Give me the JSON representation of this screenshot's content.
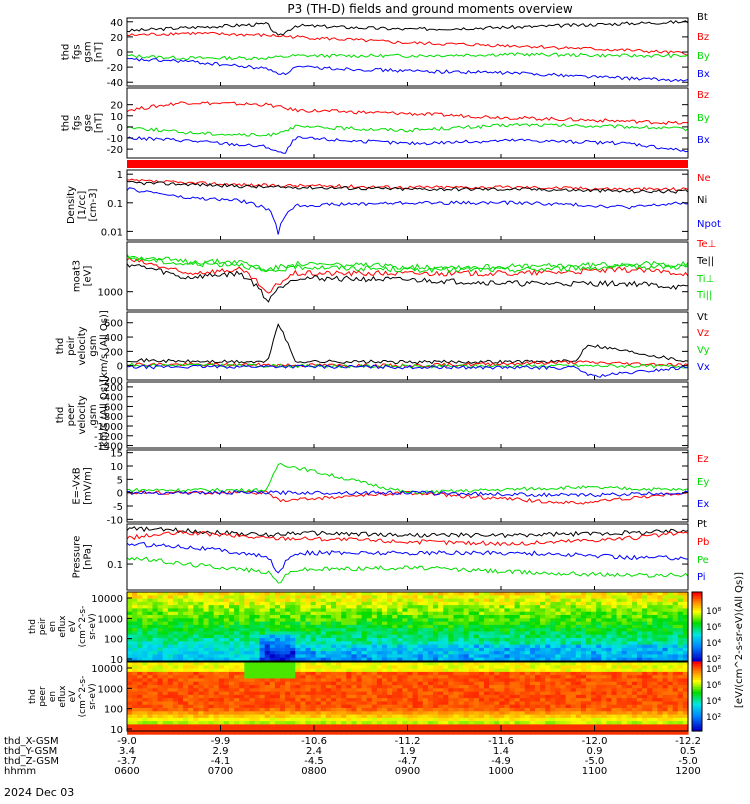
{
  "title": "P3 (TH-D) fields and ground moments overview",
  "colors": {
    "black": "#000000",
    "red": "#ff0000",
    "green": "#00dd00",
    "blue": "#0000ff"
  },
  "chart_data": {
    "type": "line",
    "date": "2024 Dec 03",
    "time_range_hhmm": [
      "0600",
      "1200"
    ],
    "panels": [
      {
        "id": "fgs-gsm",
        "ylabel_lines": [
          "thd",
          "fgs",
          "gsm",
          "[nT]"
        ],
        "ylim": [
          -45,
          45
        ],
        "ticks": [
          40,
          20,
          0,
          -20,
          -40
        ],
        "series": [
          {
            "name": "Bt",
            "color": "#000000",
            "x": [
              0,
              0.1,
              0.25,
              0.27,
              0.3,
              0.5,
              0.7,
              0.9,
              1.0
            ],
            "y": [
              28,
              32,
              37,
              20,
              35,
              30,
              33,
              38,
              40
            ]
          },
          {
            "name": "Bz",
            "color": "#ff0000",
            "x": [
              0,
              0.1,
              0.25,
              0.3,
              0.5,
              0.7,
              0.9,
              1.0
            ],
            "y": [
              22,
              25,
              22,
              20,
              12,
              8,
              2,
              -2
            ]
          },
          {
            "name": "By",
            "color": "#00dd00",
            "x": [
              0,
              0.1,
              0.25,
              0.3,
              0.5,
              0.7,
              0.9,
              1.0
            ],
            "y": [
              -5,
              -8,
              -8,
              -5,
              -5,
              -3,
              -5,
              -5
            ]
          },
          {
            "name": "Bx",
            "color": "#0000ff",
            "x": [
              0,
              0.1,
              0.25,
              0.28,
              0.3,
              0.5,
              0.7,
              0.9,
              1.0
            ],
            "y": [
              -10,
              -12,
              -22,
              -30,
              -20,
              -25,
              -28,
              -35,
              -38
            ]
          }
        ]
      },
      {
        "id": "fgs-gse",
        "ylabel_lines": [
          "thd",
          "fgs",
          "gse",
          "[nT]"
        ],
        "ylim": [
          -28,
          35
        ],
        "ticks": [
          20,
          10,
          0,
          -10,
          -20
        ],
        "series": [
          {
            "name": "Bz",
            "color": "#ff0000",
            "x": [
              0,
              0.1,
              0.25,
              0.3,
              0.5,
              0.7,
              0.9,
              1.0
            ],
            "y": [
              15,
              22,
              20,
              15,
              12,
              8,
              5,
              3
            ]
          },
          {
            "name": "By",
            "color": "#00dd00",
            "x": [
              0,
              0.1,
              0.25,
              0.3,
              0.5,
              0.7,
              0.9,
              1.0
            ],
            "y": [
              0,
              -5,
              -8,
              0,
              -3,
              2,
              0,
              -2
            ]
          },
          {
            "name": "Bx",
            "color": "#0000ff",
            "x": [
              0,
              0.1,
              0.25,
              0.28,
              0.3,
              0.5,
              0.7,
              0.9,
              1.0
            ],
            "y": [
              -10,
              -12,
              -18,
              -25,
              -10,
              -15,
              -12,
              -15,
              -22
            ]
          }
        ]
      },
      {
        "id": "density",
        "ylabel_lines": [
          "Density",
          "[1/cc]",
          "[cm-3]"
        ],
        "ylim": [
          0.005,
          1.4
        ],
        "log": true,
        "ticks": [
          1.0,
          0.1,
          0.01
        ],
        "series": [
          {
            "name": "Ne",
            "color": "#ff0000",
            "x": [
              0,
              0.1,
              0.25,
              0.3,
              0.5,
              0.7,
              0.9,
              1.0
            ],
            "y": [
              0.6,
              0.5,
              0.4,
              0.4,
              0.35,
              0.35,
              0.3,
              0.3
            ]
          },
          {
            "name": "Ni",
            "color": "#000000",
            "x": [
              0,
              0.1,
              0.25,
              0.3,
              0.5,
              0.7,
              0.9,
              1.0
            ],
            "y": [
              0.5,
              0.45,
              0.35,
              0.35,
              0.3,
              0.3,
              0.25,
              0.25
            ]
          },
          {
            "name": "Npot",
            "color": "#0000ff",
            "x": [
              0,
              0.1,
              0.2,
              0.25,
              0.27,
              0.3,
              0.5,
              0.7,
              0.9,
              1.0
            ],
            "y": [
              0.3,
              0.15,
              0.12,
              0.06,
              0.007,
              0.08,
              0.1,
              0.1,
              0.07,
              0.1
            ]
          }
        ]
      },
      {
        "id": "temperature",
        "ylabel_lines": [
          "moat3",
          "[eV]"
        ],
        "ylim": [
          400,
          12000
        ],
        "log": true,
        "ticks": [
          1000
        ],
        "series": [
          {
            "name": "Te⊥",
            "color": "#ff0000",
            "x": [
              0,
              0.1,
              0.2,
              0.25,
              0.3,
              0.5,
              0.7,
              0.9,
              1.0
            ],
            "y": [
              5000,
              2500,
              3000,
              800,
              2500,
              2500,
              2500,
              3000,
              2500
            ]
          },
          {
            "name": "Te||",
            "color": "#000000",
            "x": [
              0,
              0.1,
              0.2,
              0.25,
              0.3,
              0.5,
              0.7,
              0.9,
              1.0
            ],
            "y": [
              4000,
              2000,
              2500,
              600,
              2000,
              1800,
              1500,
              1500,
              1200
            ]
          },
          {
            "name": "Ti⊥",
            "color": "#00dd00",
            "x": [
              0,
              0.1,
              0.2,
              0.25,
              0.3,
              0.5,
              0.7,
              0.9,
              1.0
            ],
            "y": [
              6000,
              4500,
              4500,
              3000,
              4000,
              3500,
              3500,
              4000,
              4000
            ]
          },
          {
            "name": "Ti||",
            "color": "#00dd00",
            "x": [
              0,
              0.1,
              0.2,
              0.25,
              0.3,
              0.5,
              0.7,
              0.9,
              1.0
            ],
            "y": [
              5500,
              4000,
              4000,
              2500,
              3500,
              3000,
              3000,
              3500,
              3500
            ]
          }
        ]
      },
      {
        "id": "peir-velocity",
        "ylabel_lines": [
          "thd",
          "peir",
          "velocity",
          "gsm",
          "[km/s (All Qs)]"
        ],
        "ylim": [
          -200,
          750
        ],
        "ticks": [
          600,
          400,
          200,
          0,
          -200
        ],
        "series": [
          {
            "name": "Vt",
            "color": "#000000",
            "x": [
              0,
              0.1,
              0.25,
              0.27,
              0.3,
              0.5,
              0.8,
              0.82,
              1.0
            ],
            "y": [
              80,
              60,
              50,
              600,
              60,
              50,
              60,
              300,
              60
            ]
          },
          {
            "name": "Vz",
            "color": "#ff0000",
            "x": [
              0,
              0.25,
              0.5,
              0.8,
              1.0
            ],
            "y": [
              20,
              10,
              0,
              50,
              10
            ]
          },
          {
            "name": "Vy",
            "color": "#00dd00",
            "x": [
              0,
              0.25,
              0.5,
              0.8,
              1.0
            ],
            "y": [
              10,
              0,
              -10,
              0,
              -10
            ]
          },
          {
            "name": "Vx",
            "color": "#0000ff",
            "x": [
              0,
              0.25,
              0.5,
              0.8,
              0.83,
              1.0
            ],
            "y": [
              -20,
              -10,
              -20,
              -30,
              -150,
              -20
            ]
          }
        ]
      },
      {
        "id": "peer-velocity",
        "ylabel_lines": [
          "thd",
          "peer",
          "velocity",
          "gsm",
          "[km/s (All Qs)]"
        ],
        "ylim": [
          -1450,
          -100
        ],
        "ticks": [
          -200,
          -400,
          -600,
          -800,
          -1000,
          -1200,
          -1400
        ],
        "series": [
          {
            "name": "Vt",
            "color": "#000000",
            "x": [],
            "y": []
          },
          {
            "name": "Vz",
            "color": "#ff0000",
            "x": [],
            "y": []
          },
          {
            "name": "Vy",
            "color": "#00dd00",
            "x": [],
            "y": []
          },
          {
            "name": "Vx",
            "color": "#0000ff",
            "x": [],
            "y": []
          }
        ]
      },
      {
        "id": "e-field",
        "ylabel_lines": [
          "E=-VxB",
          "[mV/m]"
        ],
        "ylim": [
          -11,
          16
        ],
        "ticks": [
          15,
          10,
          5,
          0,
          -5,
          -10
        ],
        "series": [
          {
            "name": "Ez",
            "color": "#ff0000",
            "x": [
              0,
              0.25,
              0.27,
              0.5,
              0.8,
              1.0
            ],
            "y": [
              0,
              0,
              -3,
              0,
              -4,
              0
            ]
          },
          {
            "name": "Ey",
            "color": "#00dd00",
            "x": [
              0,
              0.25,
              0.27,
              0.5,
              0.8,
              1.0
            ],
            "y": [
              1,
              1,
              11,
              0,
              2,
              1
            ]
          },
          {
            "name": "Ex",
            "color": "#0000ff",
            "x": [
              0,
              0.25,
              0.5,
              0.8,
              1.0
            ],
            "y": [
              0,
              0,
              0,
              -1,
              0
            ]
          }
        ]
      },
      {
        "id": "pressure",
        "ylabel_lines": [
          "Pressure",
          "[nPa]"
        ],
        "ylim": [
          0.02,
          1.2
        ],
        "log": true,
        "ticks": [
          0.1
        ],
        "series": [
          {
            "name": "Pt",
            "color": "#000000",
            "x": [
              0,
              0.1,
              0.25,
              0.3,
              0.5,
              0.7,
              0.9,
              1.0
            ],
            "y": [
              0.9,
              0.8,
              0.6,
              0.7,
              0.6,
              0.6,
              0.7,
              0.8
            ]
          },
          {
            "name": "Pb",
            "color": "#ff0000",
            "x": [
              0,
              0.1,
              0.25,
              0.3,
              0.5,
              0.7,
              0.9,
              1.0
            ],
            "y": [
              0.5,
              0.7,
              0.5,
              0.5,
              0.4,
              0.35,
              0.5,
              0.7
            ]
          },
          {
            "name": "Pe",
            "color": "#00dd00",
            "x": [
              0,
              0.1,
              0.25,
              0.27,
              0.3,
              0.5,
              0.7,
              0.9,
              1.0
            ],
            "y": [
              0.15,
              0.1,
              0.06,
              0.03,
              0.07,
              0.08,
              0.06,
              0.05,
              0.05
            ]
          },
          {
            "name": "Pi",
            "color": "#0000ff",
            "x": [
              0,
              0.1,
              0.25,
              0.27,
              0.3,
              0.5,
              0.7,
              0.9,
              1.0
            ],
            "y": [
              0.35,
              0.3,
              0.15,
              0.05,
              0.2,
              0.2,
              0.2,
              0.15,
              0.15
            ]
          }
        ]
      }
    ],
    "spectrograms": [
      {
        "id": "peir-en-eflux",
        "ylabel_lines": [
          "thd",
          "peir",
          "en",
          "eflux",
          "eV",
          "(cm^2-s-",
          "sr-eV)"
        ],
        "ticks": [
          "10000",
          "1000",
          "100",
          "10"
        ]
      },
      {
        "id": "peer-en-eflux",
        "ylabel_lines": [
          "thd",
          "peer",
          "en",
          "eflux",
          "eV",
          "(cm^2-s-",
          "sr-eV)"
        ],
        "ticks": [
          "10000",
          "1000",
          "100",
          "10"
        ]
      }
    ],
    "colorbar": {
      "label": "[eV/(cm^2-s-sr-eV)(All Qs)]",
      "ticks": [
        "10⁸",
        "10⁶",
        "10⁴",
        "10²"
      ],
      "ticks_lower": [
        "10⁸",
        "10⁶",
        "10⁴",
        "10²"
      ]
    },
    "x_axis_rows": [
      {
        "label": "thd_X-GSM",
        "values": [
          "-9.0",
          "-9.9",
          "-10.6",
          "-11.2",
          "-11.6",
          "-12.0",
          "-12.2"
        ]
      },
      {
        "label": "thd_Y-GSM",
        "values": [
          "3.4",
          "2.9",
          "2.4",
          "1.9",
          "1.4",
          "0.9",
          "0.5"
        ]
      },
      {
        "label": "thd_Z-GSM",
        "values": [
          "-3.7",
          "-4.1",
          "-4.5",
          "-4.7",
          "-4.9",
          "-5.0",
          "-5.0"
        ]
      },
      {
        "label": "hhmm",
        "values": [
          "0600",
          "0700",
          "0800",
          "0900",
          "1000",
          "1100",
          "1200"
        ]
      }
    ]
  }
}
